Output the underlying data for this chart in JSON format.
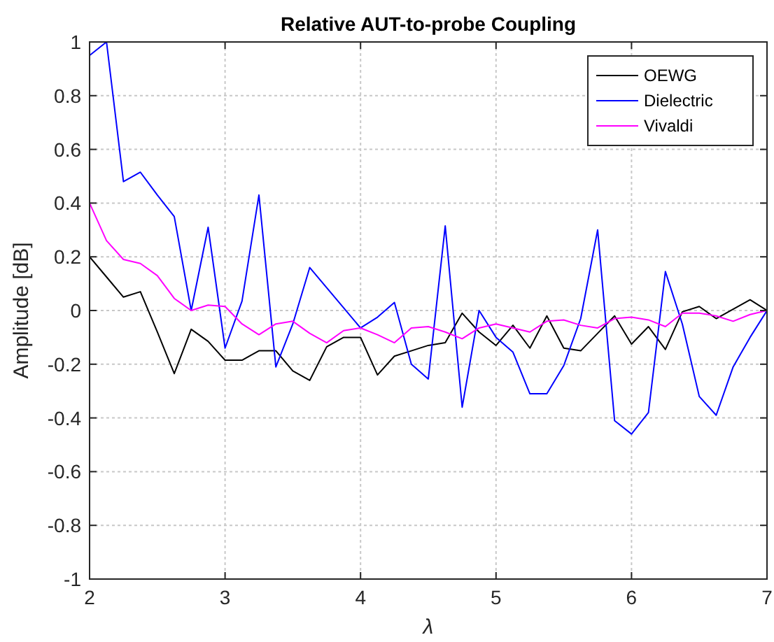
{
  "chart_data": {
    "type": "line",
    "title": "Relative AUT-to-probe Coupling",
    "xlabel": "λ",
    "ylabel": "Amplitude [dB]",
    "x": [
      2,
      2.125,
      2.25,
      2.375,
      2.5,
      2.625,
      2.75,
      2.875,
      3,
      3.125,
      3.25,
      3.375,
      3.5,
      3.625,
      3.75,
      3.875,
      4,
      4.125,
      4.25,
      4.375,
      4.5,
      4.625,
      4.75,
      4.875,
      5,
      5.125,
      5.25,
      5.375,
      5.5,
      5.625,
      5.75,
      5.875,
      6,
      6.125,
      6.25,
      6.375,
      6.5,
      6.625,
      6.75,
      6.875,
      7
    ],
    "series": [
      {
        "name": "OEWG",
        "color": "#000000",
        "values": [
          0.2,
          0.125,
          0.05,
          0.07,
          -0.08,
          -0.235,
          -0.07,
          -0.115,
          -0.185,
          -0.185,
          -0.15,
          -0.15,
          -0.225,
          -0.26,
          -0.135,
          -0.1,
          -0.1,
          -0.24,
          -0.17,
          -0.15,
          -0.13,
          -0.12,
          -0.01,
          -0.08,
          -0.13,
          -0.055,
          -0.14,
          -0.02,
          -0.14,
          -0.15,
          -0.085,
          -0.02,
          -0.125,
          -0.06,
          -0.145,
          -0.005,
          0.015,
          -0.03,
          0.005,
          0.04,
          0.0
        ]
      },
      {
        "name": "Dielectric",
        "color": "#0000ff",
        "values": [
          0.95,
          1.0,
          0.48,
          0.515,
          0.43,
          0.35,
          0.0,
          0.31,
          -0.14,
          0.035,
          0.43,
          -0.21,
          -0.05,
          0.16,
          0.085,
          0.01,
          -0.065,
          -0.025,
          0.03,
          -0.2,
          -0.255,
          0.315,
          -0.36,
          0.0,
          -0.1,
          -0.155,
          -0.31,
          -0.31,
          -0.205,
          -0.03,
          0.3,
          -0.41,
          -0.46,
          -0.38,
          0.145,
          -0.05,
          -0.32,
          -0.39,
          -0.21,
          -0.1,
          0.0
        ]
      },
      {
        "name": "Vivaldi",
        "color": "#ff00ff",
        "values": [
          0.4,
          0.26,
          0.19,
          0.175,
          0.13,
          0.045,
          0.0,
          0.02,
          0.015,
          -0.05,
          -0.09,
          -0.05,
          -0.04,
          -0.085,
          -0.12,
          -0.075,
          -0.065,
          -0.09,
          -0.12,
          -0.065,
          -0.06,
          -0.08,
          -0.105,
          -0.065,
          -0.05,
          -0.065,
          -0.08,
          -0.04,
          -0.035,
          -0.055,
          -0.065,
          -0.03,
          -0.025,
          -0.035,
          -0.06,
          -0.01,
          -0.01,
          -0.02,
          -0.04,
          -0.015,
          0.0
        ]
      }
    ],
    "xlim": [
      2,
      7
    ],
    "xticks": [
      2,
      3,
      4,
      5,
      6,
      7
    ],
    "ylim": [
      -1,
      1
    ],
    "yticks": [
      -1,
      -0.8,
      -0.6,
      -0.4,
      -0.2,
      0,
      0.2,
      0.4,
      0.6,
      0.8,
      1
    ],
    "grid": true,
    "legend": "top right",
    "marker": "none",
    "line_style": "solid"
  }
}
